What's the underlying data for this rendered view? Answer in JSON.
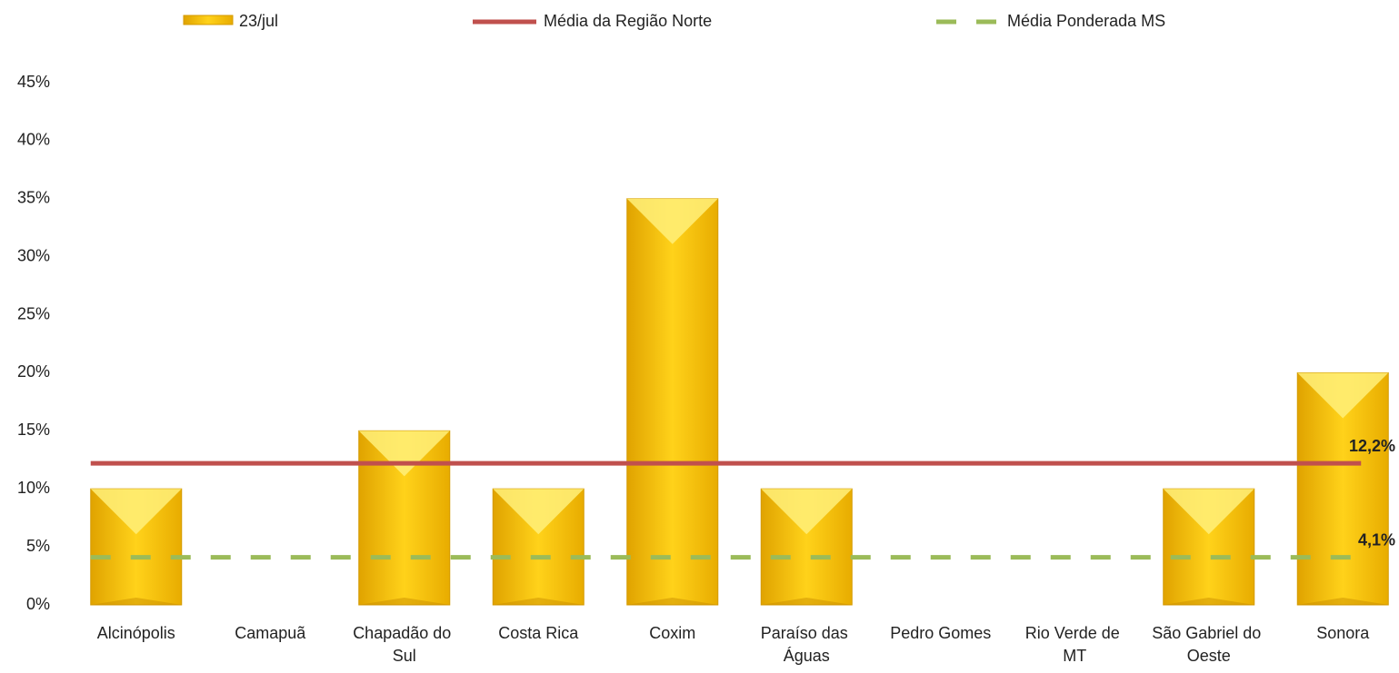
{
  "chart_data": {
    "type": "bar",
    "categories": [
      "Alcinópolis",
      "Camapuã",
      "Chapadão do Sul",
      "Costa Rica",
      "Coxim",
      "Paraíso das Águas",
      "Pedro Gomes",
      "Rio Verde de MT",
      "São Gabriel do Oeste",
      "Sonora"
    ],
    "series": [
      {
        "name": "23/jul",
        "color": "#f5c400",
        "values": [
          10,
          0,
          15,
          10,
          35,
          10,
          0,
          0,
          10,
          20
        ]
      }
    ],
    "lines": [
      {
        "name": "Média da Região Norte",
        "color": "#c0504d",
        "style": "solid",
        "value": 12.2,
        "value_label": "12,2%"
      },
      {
        "name": "Média Ponderada MS",
        "color": "#9bbb59",
        "style": "dashed",
        "value": 4.1,
        "value_label": "4,1%"
      }
    ],
    "ylim": [
      0,
      45
    ],
    "yticks": [
      {
        "value": 0,
        "label": "0%"
      },
      {
        "value": 5,
        "label": "5%"
      },
      {
        "value": 10,
        "label": "10%"
      },
      {
        "value": 15,
        "label": "15%"
      },
      {
        "value": 20,
        "label": "20%"
      },
      {
        "value": 25,
        "label": "25%"
      },
      {
        "value": 30,
        "label": "30%"
      },
      {
        "value": 35,
        "label": "35%"
      },
      {
        "value": 40,
        "label": "40%"
      },
      {
        "value": 45,
        "label": "45%"
      }
    ],
    "grid": false
  }
}
